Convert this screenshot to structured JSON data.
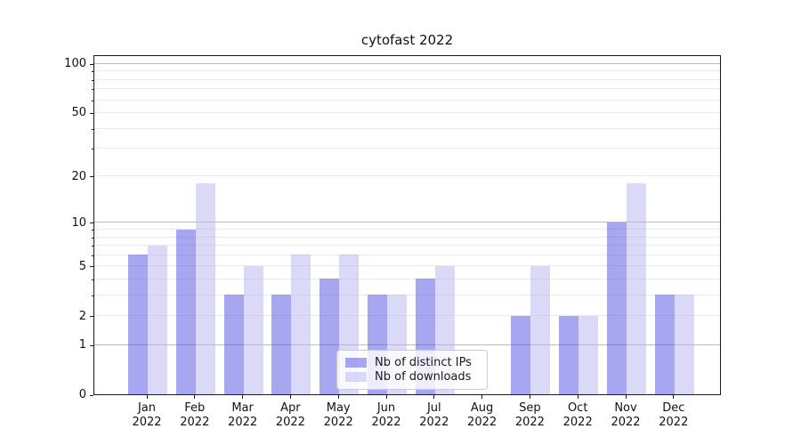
{
  "chart_data": {
    "type": "bar",
    "title": "cytofast 2022",
    "categories": [
      {
        "month": "Jan",
        "year": "2022"
      },
      {
        "month": "Feb",
        "year": "2022"
      },
      {
        "month": "Mar",
        "year": "2022"
      },
      {
        "month": "Apr",
        "year": "2022"
      },
      {
        "month": "May",
        "year": "2022"
      },
      {
        "month": "Jun",
        "year": "2022"
      },
      {
        "month": "Jul",
        "year": "2022"
      },
      {
        "month": "Aug",
        "year": "2022"
      },
      {
        "month": "Sep",
        "year": "2022"
      },
      {
        "month": "Oct",
        "year": "2022"
      },
      {
        "month": "Nov",
        "year": "2022"
      },
      {
        "month": "Dec",
        "year": "2022"
      }
    ],
    "series": [
      {
        "name": "Nb of distinct IPs",
        "color": "rgba(77,77,227,0.5)",
        "values": [
          6,
          9,
          3,
          3,
          4,
          3,
          4,
          0,
          2,
          2,
          10,
          3
        ]
      },
      {
        "name": "Nb of downloads",
        "color": "rgba(181,181,241,0.5)",
        "values": [
          7,
          18,
          5,
          6,
          6,
          3,
          5,
          0,
          5,
          2,
          18,
          3
        ]
      }
    ],
    "yscale": "log1p",
    "ylim": [
      0,
      113
    ],
    "yticks": [
      0,
      1,
      2,
      5,
      10,
      20,
      50,
      100
    ],
    "major_gridlines": [
      1,
      10,
      100
    ],
    "minor_gridlines": [
      2,
      3,
      4,
      5,
      6,
      7,
      8,
      9,
      20,
      30,
      40,
      50,
      60,
      70,
      80,
      90
    ],
    "legend_position": "lower center",
    "grid": "both",
    "xlabel": "",
    "ylabel": ""
  },
  "colors": {
    "background": "#ffffff",
    "spine": "#1a1a1a",
    "major_grid": "#bbbbbb",
    "minor_grid": "#e9e9e9",
    "text": "#111111",
    "legend_border": "#cccccc",
    "legend_bg": "rgba(255,255,255,0.8)"
  }
}
